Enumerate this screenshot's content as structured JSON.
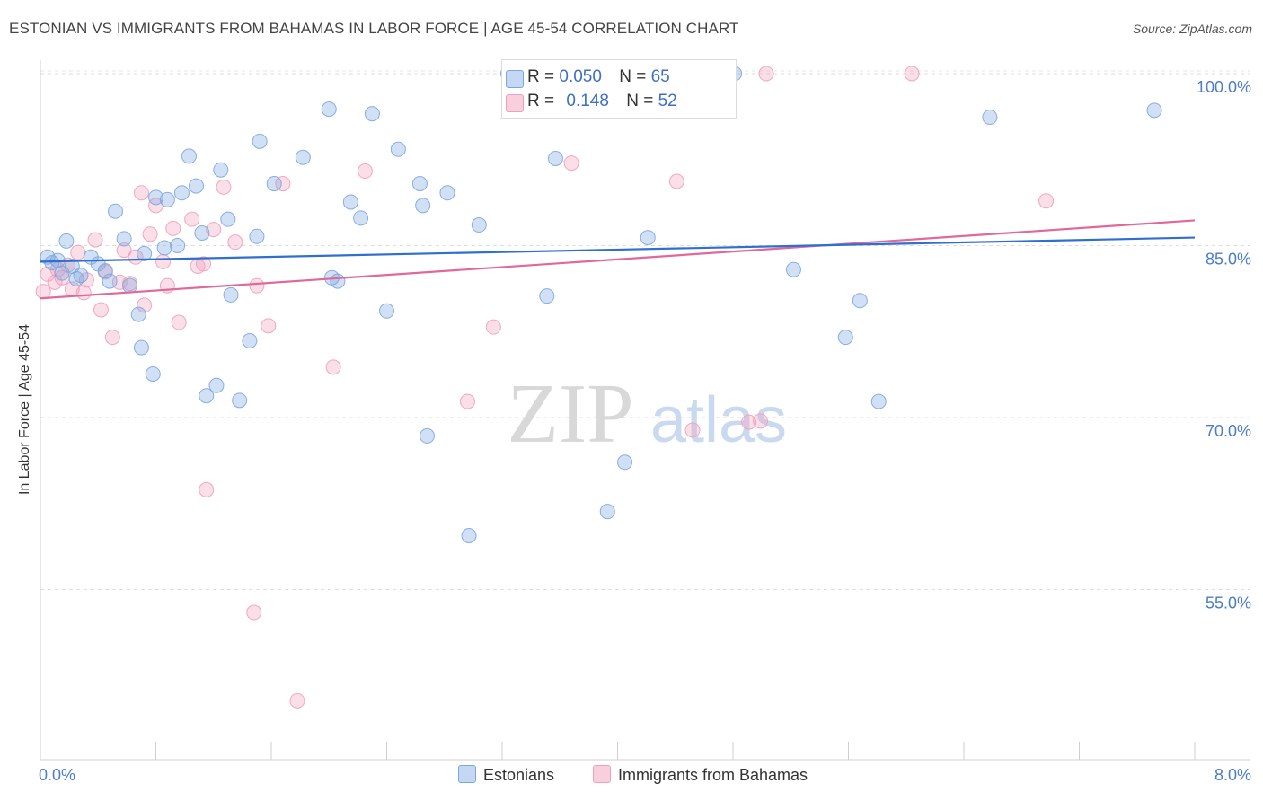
{
  "header": {
    "title": "ESTONIAN VS IMMIGRANTS FROM BAHAMAS IN LABOR FORCE | AGE 45-54 CORRELATION CHART",
    "source": "Source: ZipAtlas.com"
  },
  "watermark": {
    "zip": "ZIP",
    "atlas": "atlas"
  },
  "legend_top": {
    "rows": [
      {
        "r_label": "R =",
        "r_value": "0.050",
        "n_label": "N =",
        "n_value": "65"
      },
      {
        "r_label": "R =",
        "r_value": "0.148",
        "n_label": "N =",
        "n_value": "52"
      }
    ]
  },
  "chart_data": {
    "type": "scatter",
    "title": "ESTONIAN VS IMMIGRANTS FROM BAHAMAS IN LABOR FORCE | AGE 45-54 CORRELATION CHART",
    "xlabel": "",
    "ylabel": "In Labor Force | Age 45-54",
    "xlim": [
      0,
      8
    ],
    "ylim": [
      39,
      101
    ],
    "x_tick_labels": [
      "0.0%",
      "8.0%"
    ],
    "y_ticks": [
      55,
      70,
      85,
      100
    ],
    "y_tick_labels": [
      "55.0%",
      "70.0%",
      "85.0%",
      "100.0%"
    ],
    "grid": true,
    "legend_position": "top-center",
    "colors": {
      "estonians": "#7ba7e0",
      "bahamas": "#f0a0bc",
      "estonians_line": "#2f6fcf",
      "bahamas_line": "#e0689a",
      "tick_label": "#4a7cc9"
    },
    "series": [
      {
        "name": "Estonians",
        "r": 0.05,
        "n": 65,
        "trend": [
          [
            0,
            83.6
          ],
          [
            8,
            85.7
          ]
        ],
        "points": [
          [
            0.05,
            84.0
          ],
          [
            0.08,
            83.5
          ],
          [
            0.12,
            83.7
          ],
          [
            0.18,
            85.4
          ],
          [
            0.22,
            83.2
          ],
          [
            0.28,
            82.4
          ],
          [
            0.35,
            84.0
          ],
          [
            0.4,
            83.4
          ],
          [
            0.45,
            82.8
          ],
          [
            0.52,
            88.0
          ],
          [
            0.58,
            85.6
          ],
          [
            0.62,
            81.5
          ],
          [
            0.68,
            79.0
          ],
          [
            0.7,
            76.1
          ],
          [
            0.72,
            84.3
          ],
          [
            0.78,
            73.8
          ],
          [
            0.8,
            89.2
          ],
          [
            0.86,
            84.8
          ],
          [
            0.88,
            89.0
          ],
          [
            0.95,
            85.0
          ],
          [
            0.98,
            89.6
          ],
          [
            1.03,
            92.8
          ],
          [
            1.08,
            90.2
          ],
          [
            1.12,
            86.1
          ],
          [
            1.15,
            71.9
          ],
          [
            1.22,
            72.8
          ],
          [
            1.25,
            91.6
          ],
          [
            1.3,
            87.3
          ],
          [
            1.32,
            80.7
          ],
          [
            1.38,
            71.5
          ],
          [
            1.45,
            76.7
          ],
          [
            1.5,
            85.8
          ],
          [
            1.52,
            94.1
          ],
          [
            1.62,
            90.4
          ],
          [
            1.82,
            92.7
          ],
          [
            2.0,
            96.9
          ],
          [
            2.02,
            82.2
          ],
          [
            2.06,
            81.9
          ],
          [
            2.15,
            88.8
          ],
          [
            2.22,
            87.4
          ],
          [
            2.3,
            96.5
          ],
          [
            2.4,
            79.3
          ],
          [
            2.48,
            93.4
          ],
          [
            2.63,
            90.4
          ],
          [
            2.65,
            88.5
          ],
          [
            2.68,
            68.4
          ],
          [
            2.82,
            89.6
          ],
          [
            2.97,
            59.7
          ],
          [
            3.04,
            86.8
          ],
          [
            3.24,
            100.0
          ],
          [
            3.51,
            80.6
          ],
          [
            3.57,
            92.6
          ],
          [
            3.93,
            61.8
          ],
          [
            4.05,
            66.1
          ],
          [
            4.21,
            85.7
          ],
          [
            4.81,
            100.0
          ],
          [
            5.22,
            82.9
          ],
          [
            5.58,
            77.0
          ],
          [
            5.68,
            80.2
          ],
          [
            5.81,
            71.4
          ],
          [
            6.58,
            96.2
          ],
          [
            7.72,
            96.8
          ],
          [
            0.25,
            82.1
          ],
          [
            0.48,
            81.9
          ],
          [
            0.15,
            82.6
          ]
        ]
      },
      {
        "name": "Immigrants from Bahamas",
        "r": 0.148,
        "n": 52,
        "trend": [
          [
            0,
            80.4
          ],
          [
            8,
            87.2
          ]
        ],
        "points": [
          [
            0.02,
            81.0
          ],
          [
            0.05,
            82.5
          ],
          [
            0.1,
            81.8
          ],
          [
            0.15,
            82.2
          ],
          [
            0.22,
            81.2
          ],
          [
            0.26,
            84.4
          ],
          [
            0.3,
            80.9
          ],
          [
            0.32,
            82.0
          ],
          [
            0.38,
            85.5
          ],
          [
            0.42,
            79.4
          ],
          [
            0.45,
            82.7
          ],
          [
            0.5,
            77.0
          ],
          [
            0.55,
            81.8
          ],
          [
            0.58,
            84.6
          ],
          [
            0.62,
            81.7
          ],
          [
            0.66,
            84.0
          ],
          [
            0.7,
            89.6
          ],
          [
            0.72,
            79.8
          ],
          [
            0.76,
            86.0
          ],
          [
            0.8,
            88.5
          ],
          [
            0.85,
            83.6
          ],
          [
            0.88,
            81.5
          ],
          [
            0.92,
            86.5
          ],
          [
            0.96,
            78.3
          ],
          [
            1.05,
            87.3
          ],
          [
            1.09,
            83.2
          ],
          [
            1.13,
            83.4
          ],
          [
            1.15,
            63.7
          ],
          [
            1.2,
            86.4
          ],
          [
            1.27,
            90.1
          ],
          [
            1.35,
            85.3
          ],
          [
            1.48,
            53.0
          ],
          [
            1.5,
            81.5
          ],
          [
            1.58,
            78.0
          ],
          [
            1.68,
            90.4
          ],
          [
            1.78,
            45.3
          ],
          [
            2.03,
            74.4
          ],
          [
            2.25,
            91.5
          ],
          [
            2.96,
            71.4
          ],
          [
            3.14,
            77.9
          ],
          [
            3.59,
            100.0
          ],
          [
            3.68,
            92.2
          ],
          [
            4.19,
            100.0
          ],
          [
            4.41,
            90.6
          ],
          [
            4.52,
            68.9
          ],
          [
            4.91,
            69.6
          ],
          [
            4.99,
            69.7
          ],
          [
            5.03,
            100.0
          ],
          [
            6.04,
            100.0
          ],
          [
            6.97,
            88.9
          ],
          [
            0.12,
            82.9
          ],
          [
            0.19,
            83.3
          ]
        ]
      }
    ]
  },
  "bottom_legend": {
    "items": [
      {
        "label": "Estonians"
      },
      {
        "label": "Immigrants from Bahamas"
      }
    ]
  },
  "axes": {
    "x_min_label": "0.0%",
    "x_max_label": "8.0%"
  }
}
